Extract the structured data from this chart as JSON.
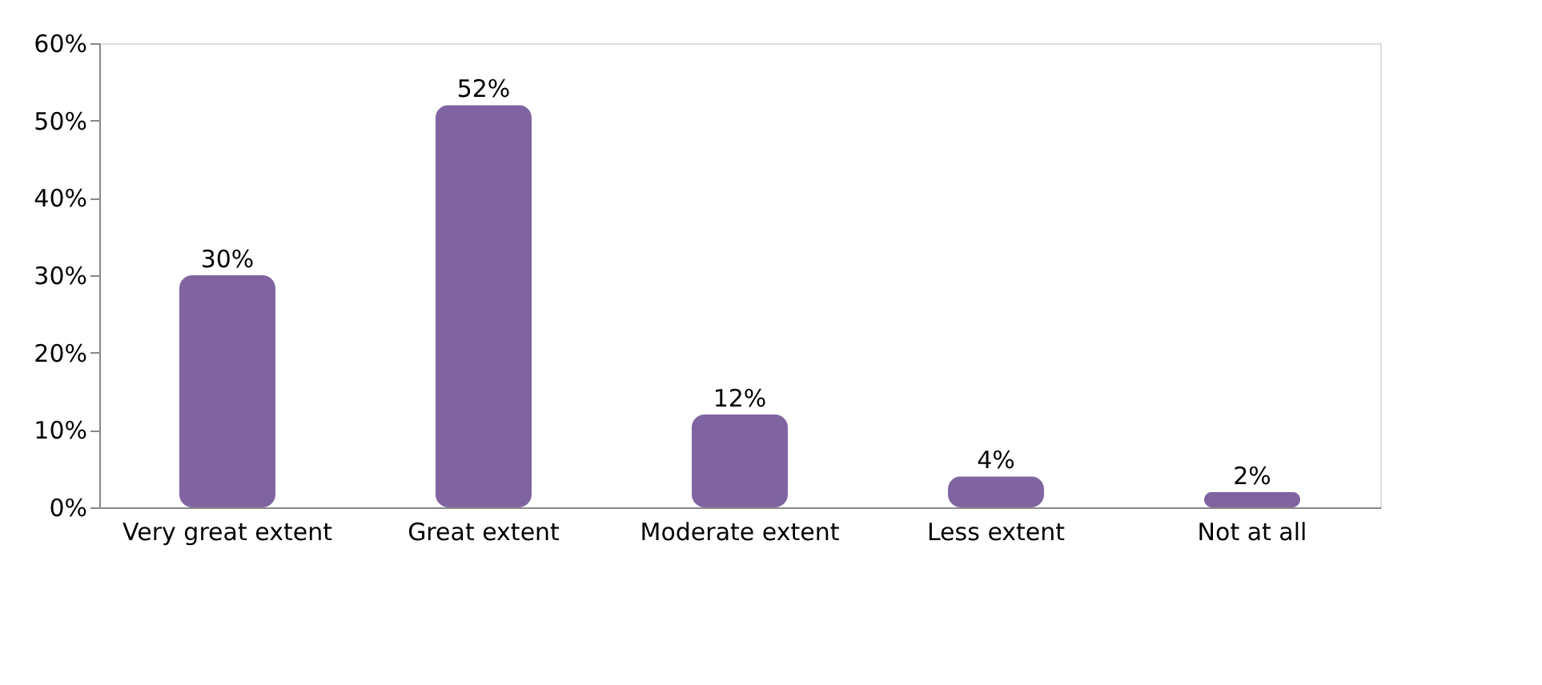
{
  "chart_data": {
    "type": "bar",
    "categories": [
      "Very great extent",
      "Great extent",
      "Moderate extent",
      "Less extent",
      "Not at all"
    ],
    "values": [
      30,
      52,
      12,
      4,
      2
    ],
    "value_labels": [
      "30%",
      "52%",
      "12%",
      "4%",
      "2%"
    ],
    "color": "#8064a2",
    "ylim": [
      0,
      60
    ],
    "yticks": [
      {
        "value": 0,
        "label": "0%"
      },
      {
        "value": 10,
        "label": "10%"
      },
      {
        "value": 20,
        "label": "20%"
      },
      {
        "value": 30,
        "label": "30%"
      },
      {
        "value": 40,
        "label": "40%"
      },
      {
        "value": 50,
        "label": "50%"
      },
      {
        "value": 60,
        "label": "60%"
      }
    ],
    "grid": false
  }
}
